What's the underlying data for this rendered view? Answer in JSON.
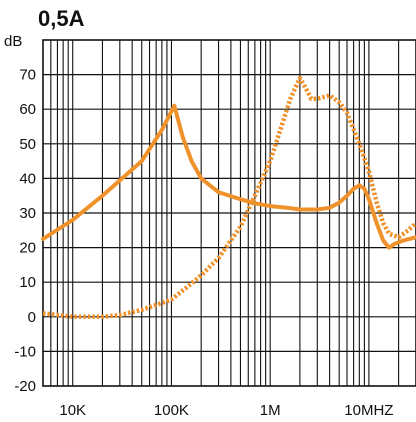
{
  "chart_data": {
    "type": "line",
    "title": "0,5A",
    "ylabel": "dB",
    "xlabel": "",
    "x_scale": "log",
    "xlim": [
      5000,
      30000000
    ],
    "ylim": [
      -20,
      80
    ],
    "grid": true,
    "legend": "none",
    "y_ticks": [
      {
        "value": 70,
        "label": "70"
      },
      {
        "value": 60,
        "label": "60"
      },
      {
        "value": 50,
        "label": "50"
      },
      {
        "value": 40,
        "label": "40"
      },
      {
        "value": 30,
        "label": "30"
      },
      {
        "value": 20,
        "label": "20"
      },
      {
        "value": 10,
        "label": "10"
      },
      {
        "value": 0,
        "label": "0"
      },
      {
        "value": -10,
        "label": "-10"
      },
      {
        "value": -20,
        "label": "-20"
      }
    ],
    "x_ticks": [
      {
        "value": 10000,
        "label": "10K"
      },
      {
        "value": 100000,
        "label": "100K"
      },
      {
        "value": 1000000,
        "label": "1M"
      },
      {
        "value": 10000000,
        "label": "10MHZ"
      }
    ],
    "series": [
      {
        "style": "solid",
        "color": "#f0922b",
        "points": [
          [
            5000,
            22.5
          ],
          [
            10000,
            28
          ],
          [
            20000,
            35
          ],
          [
            50000,
            45
          ],
          [
            80000,
            54
          ],
          [
            107000,
            61
          ],
          [
            130000,
            52
          ],
          [
            160000,
            45
          ],
          [
            200000,
            40
          ],
          [
            300000,
            36
          ],
          [
            500000,
            34
          ],
          [
            700000,
            32.8
          ],
          [
            1000000,
            32
          ],
          [
            1500000,
            31.5
          ],
          [
            2000000,
            31
          ],
          [
            3000000,
            31
          ],
          [
            4000000,
            31.5
          ],
          [
            5000000,
            33
          ],
          [
            6000000,
            35
          ],
          [
            7000000,
            37
          ],
          [
            8000000,
            38
          ],
          [
            9000000,
            37
          ],
          [
            10000000,
            34
          ],
          [
            12000000,
            27
          ],
          [
            14000000,
            22
          ],
          [
            16000000,
            20
          ],
          [
            18000000,
            21
          ],
          [
            22000000,
            22
          ],
          [
            30000000,
            23
          ]
        ]
      },
      {
        "style": "dotted",
        "color": "#f0922b",
        "points": [
          [
            5000,
            1
          ],
          [
            10000,
            0
          ],
          [
            20000,
            0
          ],
          [
            30000,
            0.5
          ],
          [
            50000,
            2
          ],
          [
            80000,
            4
          ],
          [
            100000,
            5
          ],
          [
            150000,
            9
          ],
          [
            200000,
            12
          ],
          [
            300000,
            17
          ],
          [
            500000,
            26
          ],
          [
            700000,
            35
          ],
          [
            1000000,
            45
          ],
          [
            1300000,
            55
          ],
          [
            1600000,
            63
          ],
          [
            2000000,
            69
          ],
          [
            2300000,
            66
          ],
          [
            2600000,
            63
          ],
          [
            3000000,
            63
          ],
          [
            4000000,
            64
          ],
          [
            5000000,
            62
          ],
          [
            6000000,
            59
          ],
          [
            8000000,
            50
          ],
          [
            10000000,
            42
          ],
          [
            12000000,
            33
          ],
          [
            14000000,
            27
          ],
          [
            16000000,
            24
          ],
          [
            20000000,
            23
          ],
          [
            25000000,
            25
          ],
          [
            30000000,
            27
          ]
        ]
      }
    ]
  }
}
